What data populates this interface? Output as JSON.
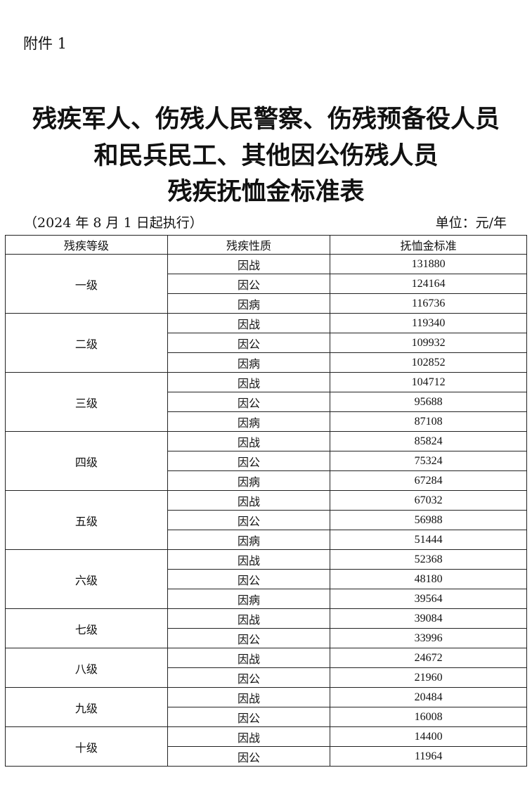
{
  "attachment_label": "附件 1",
  "title_lines": [
    "残疾军人、伤残人民警察、伤残预备役人员",
    "和民兵民工、其他因公伤残人员",
    "残疾抚恤金标准表"
  ],
  "effective_note": "（2024 年 8 月 1 日起执行）",
  "unit": "单位：元/年",
  "table": {
    "headers": [
      "残疾等级",
      "残疾性质",
      "抚恤金标准"
    ],
    "groups": [
      {
        "grade": "一级",
        "rows": [
          {
            "nature": "因战",
            "amount": "131880"
          },
          {
            "nature": "因公",
            "amount": "124164"
          },
          {
            "nature": "因病",
            "amount": "116736"
          }
        ]
      },
      {
        "grade": "二级",
        "rows": [
          {
            "nature": "因战",
            "amount": "119340"
          },
          {
            "nature": "因公",
            "amount": "109932"
          },
          {
            "nature": "因病",
            "amount": "102852"
          }
        ]
      },
      {
        "grade": "三级",
        "rows": [
          {
            "nature": "因战",
            "amount": "104712"
          },
          {
            "nature": "因公",
            "amount": "95688"
          },
          {
            "nature": "因病",
            "amount": "87108"
          }
        ]
      },
      {
        "grade": "四级",
        "rows": [
          {
            "nature": "因战",
            "amount": "85824"
          },
          {
            "nature": "因公",
            "amount": "75324"
          },
          {
            "nature": "因病",
            "amount": "67284"
          }
        ]
      },
      {
        "grade": "五级",
        "rows": [
          {
            "nature": "因战",
            "amount": "67032"
          },
          {
            "nature": "因公",
            "amount": "56988"
          },
          {
            "nature": "因病",
            "amount": "51444"
          }
        ]
      },
      {
        "grade": "六级",
        "rows": [
          {
            "nature": "因战",
            "amount": "52368"
          },
          {
            "nature": "因公",
            "amount": "48180"
          },
          {
            "nature": "因病",
            "amount": "39564"
          }
        ]
      },
      {
        "grade": "七级",
        "rows": [
          {
            "nature": "因战",
            "amount": "39084"
          },
          {
            "nature": "因公",
            "amount": "33996"
          }
        ]
      },
      {
        "grade": "八级",
        "rows": [
          {
            "nature": "因战",
            "amount": "24672"
          },
          {
            "nature": "因公",
            "amount": "21960"
          }
        ]
      },
      {
        "grade": "九级",
        "rows": [
          {
            "nature": "因战",
            "amount": "20484"
          },
          {
            "nature": "因公",
            "amount": "16008"
          }
        ]
      },
      {
        "grade": "十级",
        "rows": [
          {
            "nature": "因战",
            "amount": "14400"
          },
          {
            "nature": "因公",
            "amount": "11964"
          }
        ]
      }
    ]
  }
}
